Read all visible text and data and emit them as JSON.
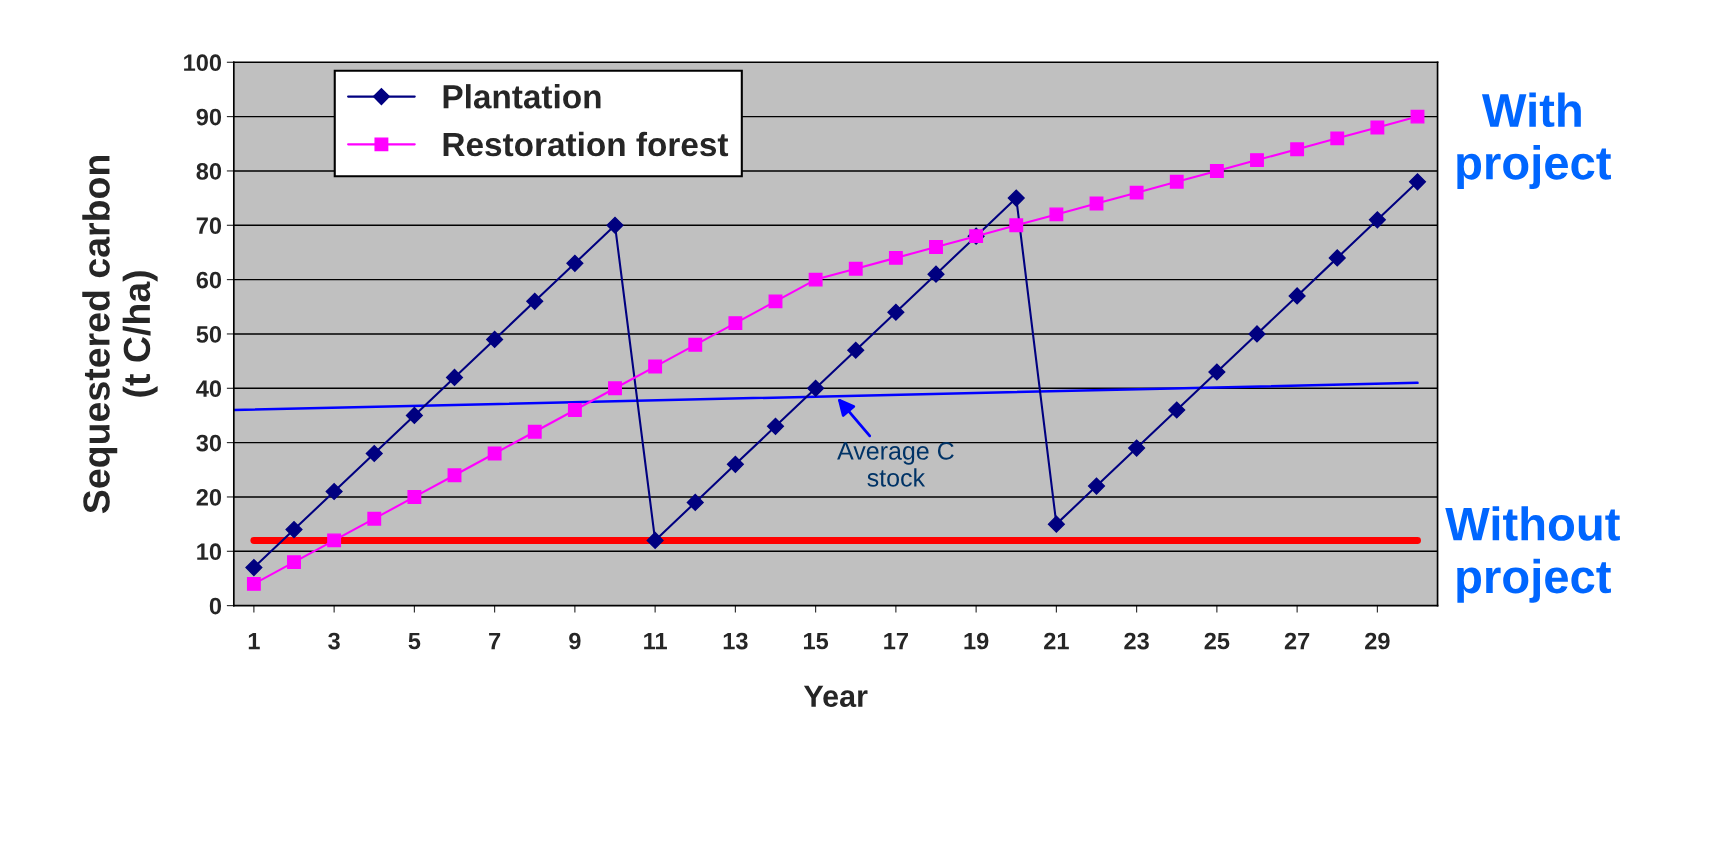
{
  "chart_data": {
    "type": "line",
    "xlabel": "Year",
    "ylabel": "Sequestered carbon\n(t C/ha)",
    "x": [
      1,
      2,
      3,
      4,
      5,
      6,
      7,
      8,
      9,
      10,
      11,
      12,
      13,
      14,
      15,
      16,
      17,
      18,
      19,
      20,
      21,
      22,
      23,
      24,
      25,
      26,
      27,
      28,
      29,
      30
    ],
    "series": [
      {
        "name": "Plantation",
        "color": "#000080",
        "marker": "diamond",
        "values": [
          7,
          14,
          21,
          28,
          35,
          42,
          49,
          56,
          63,
          70,
          12,
          19,
          26,
          33,
          40,
          47,
          54,
          61,
          68,
          75,
          15,
          22,
          29,
          36,
          43,
          50,
          57,
          64,
          71,
          78
        ]
      },
      {
        "name": "Restoration forest",
        "color": "#ff00ff",
        "marker": "square",
        "values": [
          4,
          8,
          12,
          16,
          20,
          24,
          28,
          32,
          36,
          40,
          44,
          48,
          52,
          56,
          60,
          62,
          64,
          66,
          68,
          70,
          72,
          74,
          76,
          78,
          80,
          82,
          84,
          86,
          88,
          90
        ]
      },
      {
        "color": "#0000ff",
        "marker": "none",
        "x": [
          0.5,
          30
        ],
        "values": [
          36,
          41
        ]
      },
      {
        "color": "#ff0000",
        "marker": "none",
        "x": [
          1,
          30
        ],
        "values": [
          12,
          12
        ]
      }
    ],
    "xlim": [
      0.5,
      30.5
    ],
    "xticks": [
      1,
      3,
      5,
      7,
      9,
      11,
      13,
      15,
      17,
      19,
      21,
      23,
      25,
      27,
      29
    ],
    "ylim": [
      0,
      100
    ],
    "yticks": [
      0,
      10,
      20,
      30,
      40,
      50,
      60,
      70,
      80,
      90,
      100
    ],
    "grid": "y",
    "legend": "top left",
    "annotations": [
      {
        "text": "Average C\nstock",
        "x": 15.5,
        "y": 38.6
      },
      "With\nproject",
      "Without\nproject"
    ]
  }
}
